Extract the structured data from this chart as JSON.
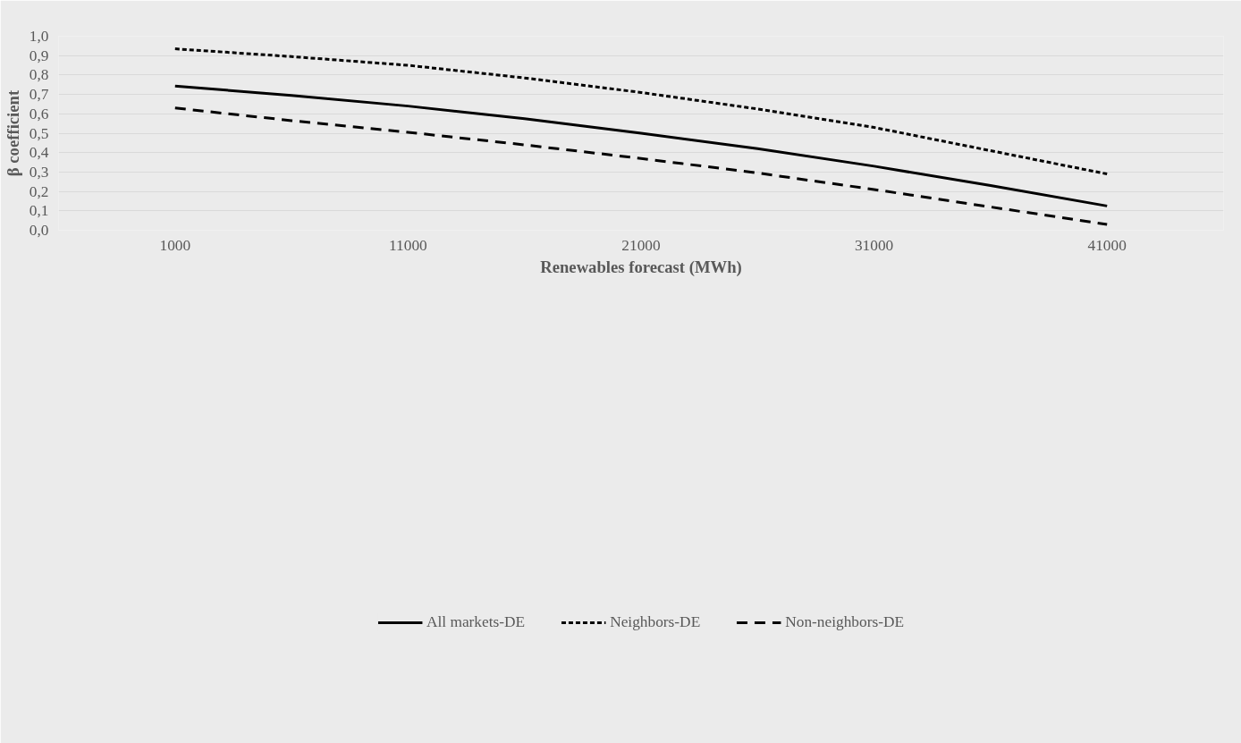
{
  "chart_data": {
    "type": "line",
    "xlabel": "Renewables forecast (MWh)",
    "ylabel": "β coefficient",
    "x": [
      1000,
      6000,
      11000,
      16000,
      21000,
      26000,
      31000,
      36000,
      41000
    ],
    "xlim": [
      -4000,
      46000
    ],
    "xticks": [
      1000,
      11000,
      21000,
      31000,
      41000
    ],
    "ylim": [
      0,
      1
    ],
    "yticks": [
      {
        "value": 0,
        "label": "0,0"
      },
      {
        "value": 0.1,
        "label": "0,1"
      },
      {
        "value": 0.2,
        "label": "0,2"
      },
      {
        "value": 0.3,
        "label": "0,3"
      },
      {
        "value": 0.4,
        "label": "0,4"
      },
      {
        "value": 0.5,
        "label": "0,5"
      },
      {
        "value": 0.6,
        "label": "0,6"
      },
      {
        "value": 0.7,
        "label": "0,7"
      },
      {
        "value": 0.8,
        "label": "0,8"
      },
      {
        "value": 0.9,
        "label": "0,9"
      },
      {
        "value": 1,
        "label": "1,0"
      }
    ],
    "grid": "y",
    "legend": "bottom",
    "marker": "none",
    "series": [
      {
        "name": "All markets-DE",
        "color": "#000000",
        "line_style": "solid",
        "values": [
          0.743,
          0.695,
          0.64,
          0.575,
          0.5,
          0.42,
          0.33,
          0.23,
          0.125
        ]
      },
      {
        "name": "Neighbors-DE",
        "color": "#000000",
        "line_style": "dotted",
        "values": [
          0.935,
          0.895,
          0.85,
          0.785,
          0.71,
          0.625,
          0.53,
          0.41,
          0.29
        ]
      },
      {
        "name": "Non-neighbors-DE",
        "color": "#000000",
        "line_style": "dashed",
        "values": [
          0.63,
          0.565,
          0.505,
          0.44,
          0.37,
          0.295,
          0.21,
          0.12,
          0.03
        ]
      }
    ]
  }
}
